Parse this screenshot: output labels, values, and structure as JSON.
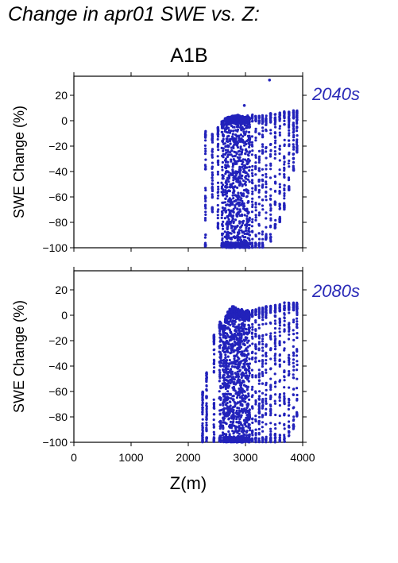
{
  "page": {
    "title": "Change in apr01 SWE vs. Z:",
    "scenario": "A1B"
  },
  "colors": {
    "points": "#2222bb",
    "axes": "#000000",
    "period_label": "#2a2ab8"
  },
  "chart_data": [
    {
      "type": "scatter",
      "period_label": "2040s",
      "xlabel": "",
      "ylabel": "SWE Change (%)",
      "xlim": [
        0,
        4000
      ],
      "ylim": [
        -100,
        35
      ],
      "x_ticks": [],
      "y_ticks": [
        "20",
        "0",
        "−20",
        "−40",
        "−60",
        "−80",
        "−100"
      ],
      "y_tick_values": [
        20,
        0,
        -20,
        -40,
        -60,
        -80,
        -100
      ],
      "grid": false,
      "elevation_bands": [
        2300,
        2420,
        2520,
        2600,
        2660,
        2700,
        2740,
        2780,
        2820,
        2860,
        2900,
        2940,
        2980,
        3020,
        3060,
        3120,
        3180,
        3240,
        3300,
        3360,
        3440,
        3520,
        3600,
        3680,
        3760,
        3840,
        3900
      ],
      "y_max_by_band": [
        -8,
        -10,
        -5,
        0,
        2,
        3,
        3,
        4,
        4,
        5,
        4,
        4,
        3,
        4,
        3,
        5,
        4,
        4,
        5,
        4,
        6,
        6,
        7,
        8,
        7,
        8,
        8
      ],
      "y_min_by_band": [
        -100,
        -72,
        -85,
        -100,
        -100,
        -100,
        -100,
        -100,
        -100,
        -100,
        -100,
        -100,
        -100,
        -100,
        -100,
        -100,
        -100,
        -100,
        -100,
        -95,
        -95,
        -85,
        -80,
        -70,
        -55,
        -40,
        -25
      ],
      "outliers": [
        {
          "x": 3420,
          "y": 32
        },
        {
          "x": 2980,
          "y": 12
        }
      ],
      "point_count": 1400
    },
    {
      "type": "scatter",
      "period_label": "2080s",
      "xlabel": "Z(m)",
      "ylabel": "SWE Change (%)",
      "xlim": [
        0,
        4000
      ],
      "ylim": [
        -100,
        35
      ],
      "x_ticks": [
        "0",
        "1000",
        "2000",
        "3000",
        "4000"
      ],
      "x_tick_values": [
        0,
        1000,
        2000,
        3000,
        4000
      ],
      "y_ticks": [
        "20",
        "0",
        "−20",
        "−40",
        "−60",
        "−80",
        "−100"
      ],
      "y_tick_values": [
        20,
        0,
        -20,
        -40,
        -60,
        -80,
        -100
      ],
      "grid": false,
      "elevation_bands": [
        2250,
        2320,
        2450,
        2560,
        2620,
        2660,
        2700,
        2740,
        2780,
        2820,
        2860,
        2900,
        2940,
        2980,
        3020,
        3060,
        3120,
        3180,
        3240,
        3300,
        3360,
        3440,
        3520,
        3600,
        3680,
        3760,
        3840,
        3900
      ],
      "y_max_by_band": [
        -60,
        -45,
        -15,
        -5,
        -8,
        0,
        3,
        5,
        7,
        6,
        5,
        4,
        5,
        3,
        4,
        3,
        4,
        5,
        6,
        6,
        7,
        8,
        8,
        9,
        10,
        10,
        10,
        10
      ],
      "y_min_by_band": [
        -100,
        -100,
        -100,
        -100,
        -100,
        -100,
        -100,
        -100,
        -100,
        -100,
        -100,
        -100,
        -100,
        -100,
        -100,
        -100,
        -100,
        -100,
        -100,
        -100,
        -100,
        -100,
        -100,
        -100,
        -100,
        -95,
        -90,
        -80
      ],
      "outliers": [],
      "point_count": 1700
    }
  ]
}
